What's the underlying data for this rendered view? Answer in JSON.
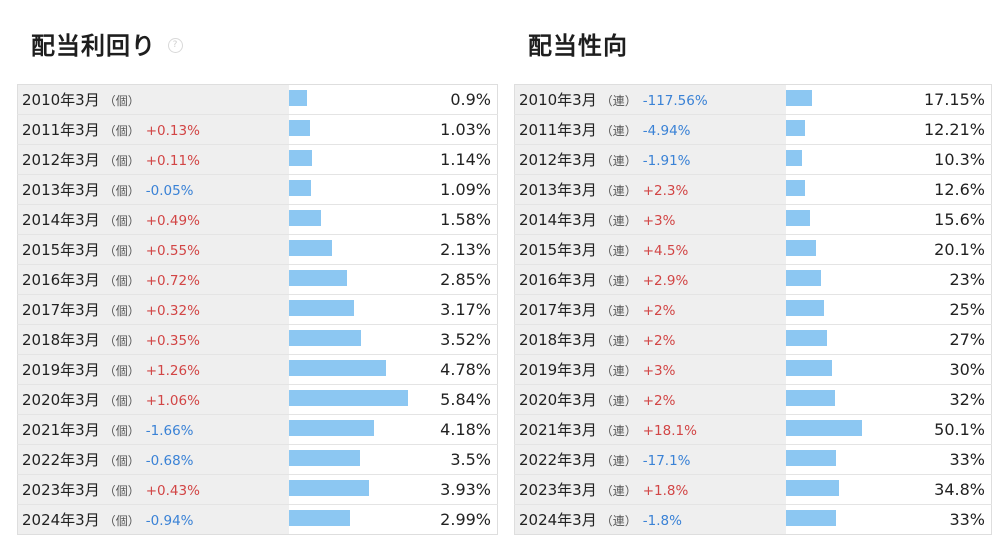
{
  "yield_panel": {
    "title": "配当利回り",
    "help_icon": "question-mark-icon",
    "unit_label": "（個）",
    "rows": [
      {
        "year": "2010年3月",
        "change": "",
        "value": "0.9%",
        "num": 0.9
      },
      {
        "year": "2011年3月",
        "change": "+0.13%",
        "value": "1.03%",
        "num": 1.03
      },
      {
        "year": "2012年3月",
        "change": "+0.11%",
        "value": "1.14%",
        "num": 1.14
      },
      {
        "year": "2013年3月",
        "change": "-0.05%",
        "value": "1.09%",
        "num": 1.09
      },
      {
        "year": "2014年3月",
        "change": "+0.49%",
        "value": "1.58%",
        "num": 1.58
      },
      {
        "year": "2015年3月",
        "change": "+0.55%",
        "value": "2.13%",
        "num": 2.13
      },
      {
        "year": "2016年3月",
        "change": "+0.72%",
        "value": "2.85%",
        "num": 2.85
      },
      {
        "year": "2017年3月",
        "change": "+0.32%",
        "value": "3.17%",
        "num": 3.17
      },
      {
        "year": "2018年3月",
        "change": "+0.35%",
        "value": "3.52%",
        "num": 3.52
      },
      {
        "year": "2019年3月",
        "change": "+1.26%",
        "value": "4.78%",
        "num": 4.78
      },
      {
        "year": "2020年3月",
        "change": "+1.06%",
        "value": "5.84%",
        "num": 5.84
      },
      {
        "year": "2021年3月",
        "change": "-1.66%",
        "value": "4.18%",
        "num": 4.18
      },
      {
        "year": "2022年3月",
        "change": "-0.68%",
        "value": "3.5%",
        "num": 3.5
      },
      {
        "year": "2023年3月",
        "change": "+0.43%",
        "value": "3.93%",
        "num": 3.93
      },
      {
        "year": "2024年3月",
        "change": "-0.94%",
        "value": "2.99%",
        "num": 2.99
      }
    ]
  },
  "payout_panel": {
    "title": "配当性向",
    "unit_label": "（連）",
    "rows": [
      {
        "year": "2010年3月",
        "change": "-117.56%",
        "value": "17.15%",
        "num": 17.15
      },
      {
        "year": "2011年3月",
        "change": "-4.94%",
        "value": "12.21%",
        "num": 12.21
      },
      {
        "year": "2012年3月",
        "change": "-1.91%",
        "value": "10.3%",
        "num": 10.3
      },
      {
        "year": "2013年3月",
        "change": "+2.3%",
        "value": "12.6%",
        "num": 12.6
      },
      {
        "year": "2014年3月",
        "change": "+3%",
        "value": "15.6%",
        "num": 15.6
      },
      {
        "year": "2015年3月",
        "change": "+4.5%",
        "value": "20.1%",
        "num": 20.1
      },
      {
        "year": "2016年3月",
        "change": "+2.9%",
        "value": "23%",
        "num": 23
      },
      {
        "year": "2017年3月",
        "change": "+2%",
        "value": "25%",
        "num": 25
      },
      {
        "year": "2018年3月",
        "change": "+2%",
        "value": "27%",
        "num": 27
      },
      {
        "year": "2019年3月",
        "change": "+3%",
        "value": "30%",
        "num": 30
      },
      {
        "year": "2020年3月",
        "change": "+2%",
        "value": "32%",
        "num": 32
      },
      {
        "year": "2021年3月",
        "change": "+18.1%",
        "value": "50.1%",
        "num": 50.1
      },
      {
        "year": "2022年3月",
        "change": "-17.1%",
        "value": "33%",
        "num": 33
      },
      {
        "year": "2023年3月",
        "change": "+1.8%",
        "value": "34.8%",
        "num": 34.8
      },
      {
        "year": "2024年3月",
        "change": "-1.8%",
        "value": "33%",
        "num": 33
      }
    ]
  },
  "colors": {
    "bar": "#8cc7f2",
    "up": "#d24545",
    "down": "#3a82d6",
    "label_bg": "#efefef"
  }
}
